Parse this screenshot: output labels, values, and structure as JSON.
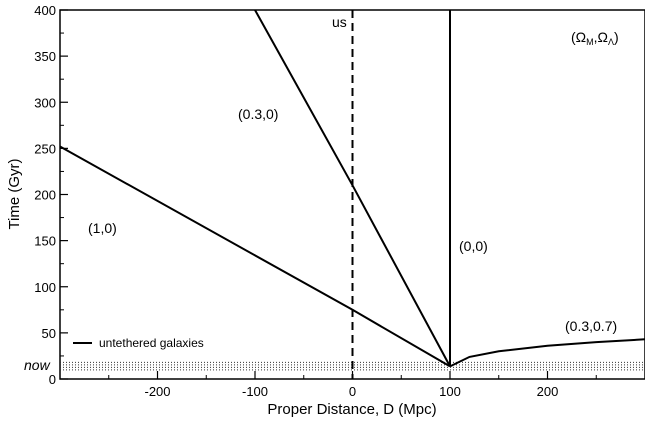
{
  "chart_data": {
    "type": "line",
    "xlabel": "Proper Distance, D (Mpc)",
    "ylabel": "Time  (Gyr)",
    "xlim": [
      -300,
      300
    ],
    "ylim": [
      0,
      400
    ],
    "xticks": [
      -200,
      -100,
      0,
      100,
      200
    ],
    "yticks": [
      0,
      50,
      100,
      150,
      200,
      250,
      300,
      350,
      400
    ],
    "now_label": "now",
    "now_time": 13.7,
    "observer_label": "us",
    "observer_x": 0,
    "legend_corner": "(ΩM,ΩΛ)",
    "legend_corner_parts": {
      "open": "(Ω",
      "sub1": "M",
      "mid": ",Ω",
      "sub2": "Λ",
      "close": ")"
    },
    "legend_entry": "untethered galaxies",
    "grid": false,
    "series": [
      {
        "name": "(1,0)",
        "points": [
          [
            100,
            13.7
          ],
          [
            0,
            75
          ],
          [
            -300,
            252
          ]
        ]
      },
      {
        "name": "(0.3,0)",
        "points": [
          [
            100,
            13.7
          ],
          [
            0,
            210
          ],
          [
            -100,
            400
          ]
        ]
      },
      {
        "name": "(0,0)",
        "points": [
          [
            100,
            13.7
          ],
          [
            100,
            400
          ]
        ]
      },
      {
        "name": "(0.3,0.7)",
        "points": [
          [
            100,
            13.7
          ],
          [
            120,
            24
          ],
          [
            150,
            30
          ],
          [
            200,
            36
          ],
          [
            250,
            40
          ],
          [
            300,
            43
          ]
        ]
      }
    ]
  }
}
